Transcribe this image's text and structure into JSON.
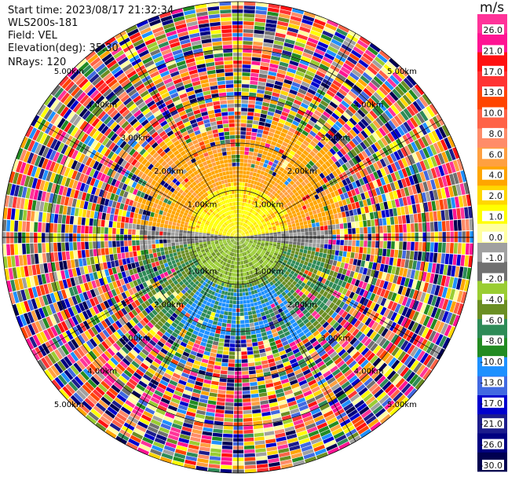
{
  "header": {
    "start_time": "Start time: 2023/08/17 21:32:34",
    "instrument": "WLS200s-181",
    "field": "Field: VEL",
    "elevation": "Elevation(deg): 35.30",
    "nrays": "NRays: 120"
  },
  "chart_data": {
    "type": "heatmap",
    "subtype": "polar-ppi",
    "field": "VEL",
    "units": "m/s",
    "n_rays": 120,
    "range_rings_km": [
      1.0,
      2.0,
      3.0,
      4.0,
      5.0
    ],
    "ring_label_text": "{r}km",
    "max_range_km": 5.0,
    "colorbar": {
      "title": "m/s",
      "ticks": [
        "26.0",
        "21.0",
        "17.0",
        "13.0",
        "10.0",
        "8.0",
        "6.0",
        "4.0",
        "2.0",
        "1.0",
        "0.0",
        "-1.0",
        "-2.0",
        "-4.0",
        "-6.0",
        "-8.0",
        "-10.0",
        "-13.0",
        "-17.0",
        "-21.0",
        "-26.0",
        "-30.0"
      ],
      "colors": [
        "#ff3399",
        "#ff1493",
        "#ff1111",
        "#ff3333",
        "#ff4500",
        "#ff6347",
        "#ff8c69",
        "#ffa040",
        "#ffa500",
        "#ffd700",
        "#ffff00",
        "#ffffa0",
        "#a0a0a0",
        "#707070",
        "#9acd32",
        "#6b8e23",
        "#2e8b57",
        "#228b22",
        "#1e90ff",
        "#4169e1",
        "#0000cd",
        "#1c1c8c",
        "#000080",
        "#000050"
      ]
    },
    "pattern": {
      "north_sector": "positive (orange/yellow)",
      "south_sector": "negative (green/blue)",
      "outer_ranges": "noise"
    }
  }
}
